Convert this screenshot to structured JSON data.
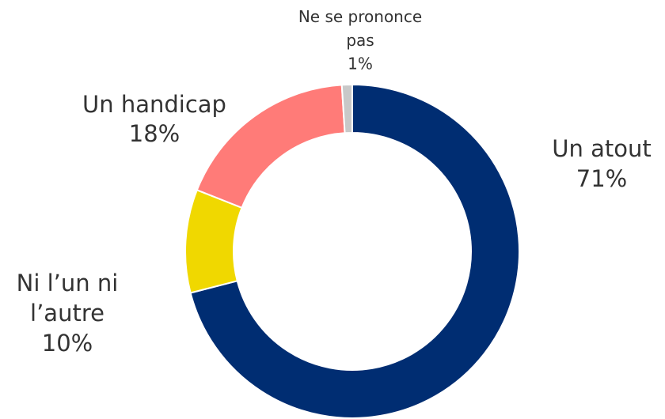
{
  "chart_data": {
    "type": "donut",
    "categories": [
      "Un atout",
      "Ni l’un ni l’autre",
      "Un handicap",
      "Ne se prononce pas"
    ],
    "values": [
      71,
      10,
      18,
      1
    ],
    "value_labels": [
      "71%",
      "10%",
      "18%",
      "1%"
    ],
    "colors": [
      "#002d72",
      "#f0d800",
      "#ff7b78",
      "#c8c8c8"
    ]
  }
}
